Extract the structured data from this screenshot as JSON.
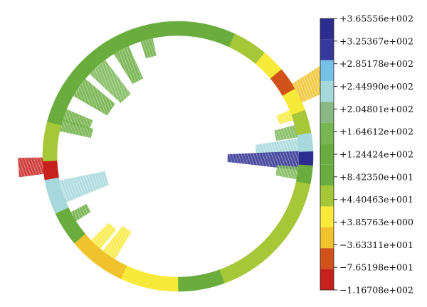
{
  "chart_data": {
    "type": "heatmap",
    "title": "",
    "colorbar": {
      "placement": "right",
      "tick_labels": [
        "+3.65556e+002",
        "+3.25367e+002",
        "+2.85178e+002",
        "+2.44990e+002",
        "+2.04801e+002",
        "+1.64612e+002",
        "+1.24424e+002",
        "+8.42350e+001",
        "+4.40463e+001",
        "+3.85763e+000",
        "−3.63311e+001",
        "−7.65198e+001",
        "−1.16708e+002"
      ],
      "colors": [
        "#2d2d8f",
        "#38389b",
        "#77c1e6",
        "#a6d8dc",
        "#88b884",
        "#78b653",
        "#6aad3e",
        "#6aad3e",
        "#a6c738",
        "#f7ea3a",
        "#f0c32d",
        "#d1531b",
        "#c8211d"
      ]
    },
    "ring_segments": [
      {
        "a0": -110,
        "a1": -65,
        "value": 120
      },
      {
        "a0": -65,
        "a1": -50,
        "value": 60
      },
      {
        "a0": -50,
        "a1": -40,
        "value": 10
      },
      {
        "a0": -40,
        "a1": -30,
        "value": -50
      },
      {
        "a0": -30,
        "a1": -20,
        "value": 10
      },
      {
        "a0": -20,
        "a1": -10,
        "value": 60
      },
      {
        "a0": -10,
        "a1": -2,
        "value": 230
      },
      {
        "a0": -2,
        "a1": 4,
        "value": 350
      },
      {
        "a0": 4,
        "a1": 12,
        "value": 110
      },
      {
        "a0": 12,
        "a1": 70,
        "value": 60
      },
      {
        "a0": 70,
        "a1": 90,
        "value": 80
      },
      {
        "a0": 90,
        "a1": 115,
        "value": 30
      },
      {
        "a0": 115,
        "a1": 140,
        "value": -10
      },
      {
        "a0": 140,
        "a1": 155,
        "value": 80
      },
      {
        "a0": 155,
        "a1": 170,
        "value": 250
      },
      {
        "a0": 170,
        "a1": 178,
        "value": -110
      },
      {
        "a0": 178,
        "a1": 195,
        "value": 60
      },
      {
        "a0": 195,
        "a1": 250,
        "value": 120
      }
    ],
    "radial_bars": [
      {
        "angle": -28,
        "width": 9,
        "length": 50,
        "value": -20
      },
      {
        "angle": -20,
        "width": 5,
        "length": 20,
        "value": 20
      },
      {
        "angle": -12,
        "width": 6,
        "length": 30,
        "value": 160
      },
      {
        "angle": -5,
        "width": 7,
        "length": 60,
        "value": 230
      },
      {
        "angle": 2,
        "width": 9,
        "length": 100,
        "value": 350
      },
      {
        "angle": 8,
        "width": 6,
        "length": 30,
        "value": 160
      },
      {
        "angle": 125,
        "width": 7,
        "length": 45,
        "value": 10
      },
      {
        "angle": 133,
        "width": 6,
        "length": 35,
        "value": 20
      },
      {
        "angle": 150,
        "width": 5,
        "length": 25,
        "value": 110
      },
      {
        "angle": 176,
        "width": 7,
        "length": 35,
        "value": -110
      },
      {
        "angle": 163,
        "width": 11,
        "length": 65,
        "value": 230
      },
      {
        "angle": 195,
        "width": 6,
        "length": 45,
        "value": 110
      },
      {
        "angle": 200,
        "width": 6,
        "length": 40,
        "value": 110
      },
      {
        "angle": 215,
        "width": 10,
        "length": 55,
        "value": 130
      },
      {
        "angle": 228,
        "width": 10,
        "length": 60,
        "value": 150
      },
      {
        "angle": 242,
        "width": 8,
        "length": 50,
        "value": 140
      },
      {
        "angle": 255,
        "width": 6,
        "length": 25,
        "value": 120
      }
    ]
  }
}
